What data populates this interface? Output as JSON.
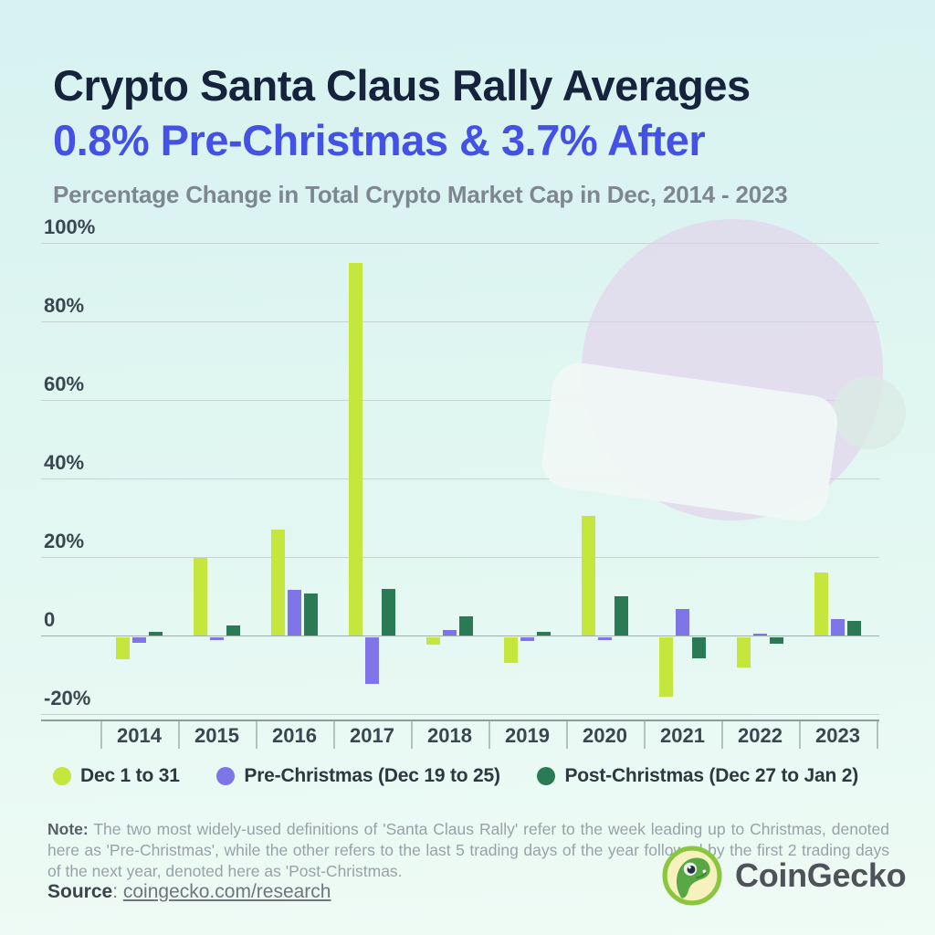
{
  "header": {
    "title_line1": "Crypto Santa Claus Rally Averages",
    "title_line2": "0.8% Pre-Christmas & 3.7% After",
    "subtitle": "Percentage Change in Total Crypto Market Cap in Dec, 2014 - 2023"
  },
  "chart_data": {
    "type": "bar",
    "title": "Crypto Santa Claus Rally Averages 0.8% Pre-Christmas & 3.7% After",
    "subtitle": "Percentage Change in Total Crypto Market Cap in Dec, 2014 - 2023",
    "categories": [
      "2014",
      "2015",
      "2016",
      "2017",
      "2018",
      "2019",
      "2020",
      "2021",
      "2022",
      "2023"
    ],
    "series": [
      {
        "name": "Dec 1 to 31",
        "color": "#c5e63c",
        "values": [
          -5.8,
          19.8,
          27.0,
          94.8,
          -1.9,
          -6.6,
          30.5,
          -15.3,
          -7.7,
          16.1
        ]
      },
      {
        "name": "Pre-Christmas (Dec 19 to 25)",
        "color": "#7f75e6",
        "values": [
          -1.4,
          -0.9,
          11.6,
          -12.0,
          1.4,
          -1.0,
          -0.9,
          6.8,
          0.4,
          4.2
        ]
      },
      {
        "name": "Post-Christmas (Dec 27 to Jan 2)",
        "color": "#2b7a56",
        "values": [
          1.0,
          2.6,
          10.6,
          11.9,
          4.8,
          0.9,
          9.9,
          -5.4,
          -1.8,
          3.8
        ]
      }
    ],
    "xlabel": "",
    "ylabel": "",
    "yticks": [
      100,
      80,
      60,
      40,
      20,
      0,
      -20
    ],
    "ytick_labels": [
      "100%",
      "80%",
      "60%",
      "40%",
      "20%",
      "0",
      "-20%"
    ],
    "ylim": [
      -20,
      100
    ],
    "grid": true,
    "legend_position": "bottom",
    "decoration": "santa-hat"
  },
  "note": {
    "label": "Note:",
    "text": " The two most widely-used definitions of 'Santa Claus Rally' refer to the week leading up to Christmas, denoted here as 'Pre-Christmas', while the other refers to the last 5 trading days of the year followed by the first 2 trading days of the next year, denoted here as 'Post-Christmas."
  },
  "source": {
    "label": "Source",
    "separator": ": ",
    "link": "coingecko.com/research"
  },
  "brand": {
    "name": "CoinGecko"
  },
  "colors": {
    "title": "#16233d",
    "accent_blue": "#4351e4",
    "lime": "#c5e63c",
    "purple": "#7f75e6",
    "dark_green": "#2b7a56",
    "background_top": "#d7f2f1",
    "background_bottom": "#effbf5"
  }
}
